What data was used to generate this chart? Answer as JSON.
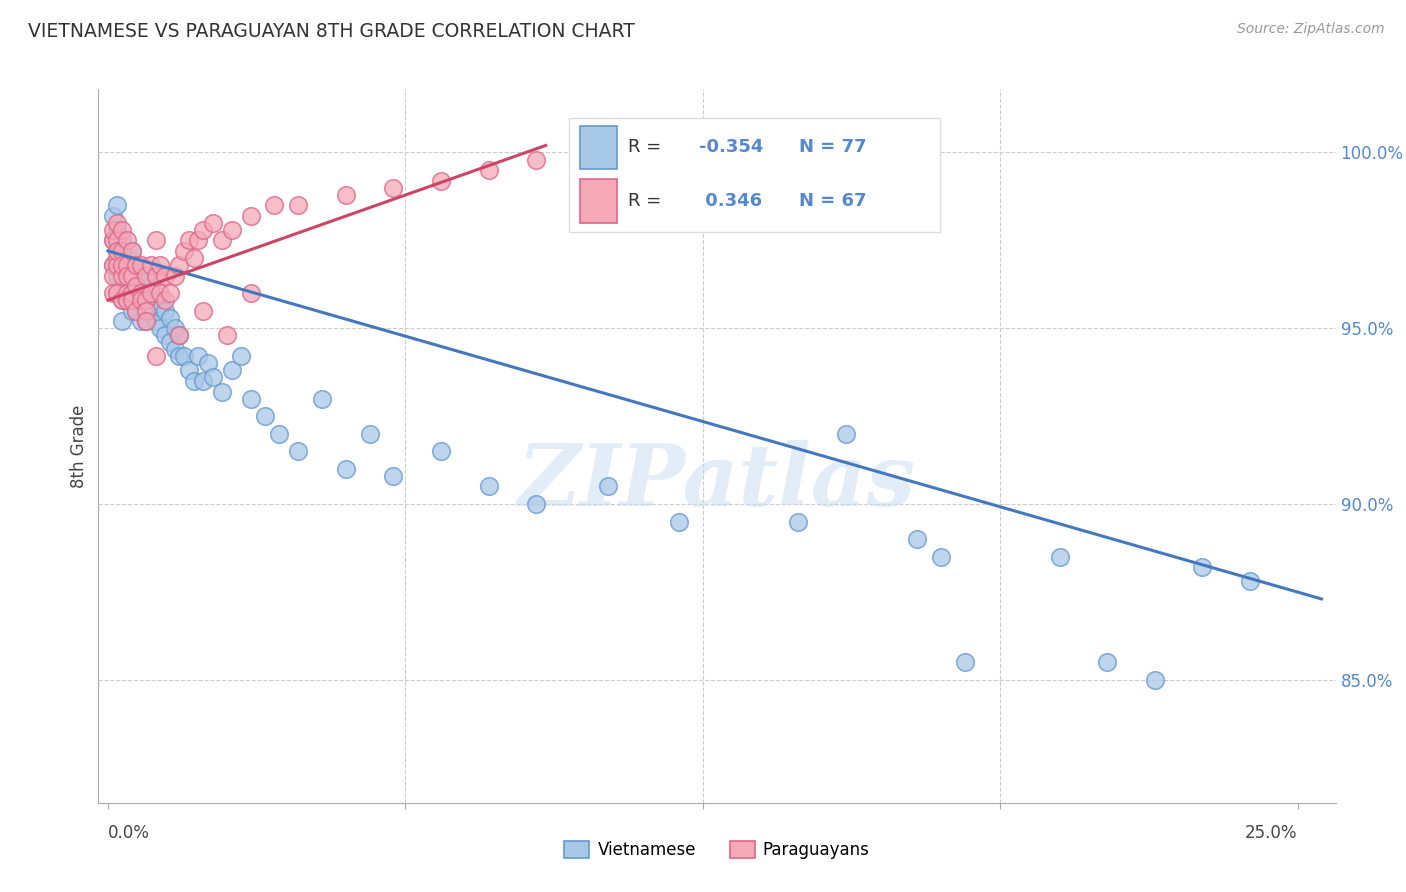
{
  "title": "VIETNAMESE VS PARAGUAYAN 8TH GRADE CORRELATION CHART",
  "source": "Source: ZipAtlas.com",
  "ylabel": "8th Grade",
  "ylim": [
    0.815,
    1.018
  ],
  "xlim": [
    -0.002,
    0.258
  ],
  "yticks": [
    0.85,
    0.9,
    0.95,
    1.0
  ],
  "ytick_labels": [
    "85.0%",
    "90.0%",
    "95.0%",
    "100.0%"
  ],
  "blue_color": "#A8C8E8",
  "pink_color": "#F4A8B8",
  "blue_edge_color": "#6699CC",
  "pink_edge_color": "#DD6688",
  "blue_line_color": "#4477BB",
  "pink_line_color": "#CC4466",
  "watermark": "ZIPatlas",
  "blue_x": [
    0.001,
    0.001,
    0.001,
    0.002,
    0.002,
    0.002,
    0.002,
    0.002,
    0.003,
    0.003,
    0.003,
    0.003,
    0.003,
    0.003,
    0.004,
    0.004,
    0.004,
    0.005,
    0.005,
    0.005,
    0.005,
    0.006,
    0.006,
    0.006,
    0.007,
    0.007,
    0.007,
    0.008,
    0.008,
    0.009,
    0.009,
    0.01,
    0.01,
    0.01,
    0.011,
    0.011,
    0.012,
    0.012,
    0.013,
    0.013,
    0.014,
    0.014,
    0.015,
    0.015,
    0.016,
    0.017,
    0.018,
    0.019,
    0.02,
    0.021,
    0.022,
    0.024,
    0.026,
    0.028,
    0.03,
    0.033,
    0.036,
    0.04,
    0.045,
    0.05,
    0.055,
    0.06,
    0.07,
    0.08,
    0.09,
    0.105,
    0.12,
    0.145,
    0.17,
    0.2,
    0.23,
    0.18,
    0.21,
    0.155,
    0.175,
    0.22,
    0.24
  ],
  "blue_y": [
    0.975,
    0.968,
    0.982,
    0.972,
    0.965,
    0.978,
    0.96,
    0.985,
    0.97,
    0.962,
    0.975,
    0.958,
    0.968,
    0.952,
    0.965,
    0.97,
    0.958,
    0.962,
    0.968,
    0.955,
    0.972,
    0.96,
    0.966,
    0.955,
    0.958,
    0.965,
    0.952,
    0.958,
    0.952,
    0.955,
    0.962,
    0.952,
    0.958,
    0.965,
    0.95,
    0.956,
    0.948,
    0.955,
    0.946,
    0.953,
    0.944,
    0.95,
    0.942,
    0.948,
    0.942,
    0.938,
    0.935,
    0.942,
    0.935,
    0.94,
    0.936,
    0.932,
    0.938,
    0.942,
    0.93,
    0.925,
    0.92,
    0.915,
    0.93,
    0.91,
    0.92,
    0.908,
    0.915,
    0.905,
    0.9,
    0.905,
    0.895,
    0.895,
    0.89,
    0.885,
    0.882,
    0.855,
    0.855,
    0.92,
    0.885,
    0.85,
    0.878
  ],
  "pink_x": [
    0.001,
    0.001,
    0.001,
    0.001,
    0.001,
    0.002,
    0.002,
    0.002,
    0.002,
    0.002,
    0.002,
    0.003,
    0.003,
    0.003,
    0.003,
    0.003,
    0.004,
    0.004,
    0.004,
    0.004,
    0.004,
    0.005,
    0.005,
    0.005,
    0.005,
    0.006,
    0.006,
    0.006,
    0.007,
    0.007,
    0.007,
    0.008,
    0.008,
    0.008,
    0.009,
    0.009,
    0.01,
    0.01,
    0.011,
    0.011,
    0.012,
    0.012,
    0.013,
    0.014,
    0.015,
    0.016,
    0.017,
    0.018,
    0.019,
    0.02,
    0.022,
    0.024,
    0.026,
    0.03,
    0.035,
    0.04,
    0.05,
    0.06,
    0.07,
    0.08,
    0.09,
    0.01,
    0.015,
    0.008,
    0.02,
    0.025,
    0.03
  ],
  "pink_y": [
    0.968,
    0.975,
    0.96,
    0.978,
    0.965,
    0.97,
    0.975,
    0.968,
    0.98,
    0.96,
    0.972,
    0.965,
    0.972,
    0.978,
    0.958,
    0.968,
    0.96,
    0.968,
    0.975,
    0.965,
    0.958,
    0.965,
    0.96,
    0.972,
    0.958,
    0.962,
    0.968,
    0.955,
    0.96,
    0.968,
    0.958,
    0.958,
    0.965,
    0.955,
    0.96,
    0.968,
    0.965,
    0.975,
    0.968,
    0.96,
    0.965,
    0.958,
    0.96,
    0.965,
    0.968,
    0.972,
    0.975,
    0.97,
    0.975,
    0.978,
    0.98,
    0.975,
    0.978,
    0.982,
    0.985,
    0.985,
    0.988,
    0.99,
    0.992,
    0.995,
    0.998,
    0.942,
    0.948,
    0.952,
    0.955,
    0.948,
    0.96
  ],
  "blue_trend_x": [
    0.0,
    0.255
  ],
  "blue_trend_y": [
    0.972,
    0.873
  ],
  "pink_trend_x": [
    0.0,
    0.092
  ],
  "pink_trend_y": [
    0.958,
    1.002
  ]
}
